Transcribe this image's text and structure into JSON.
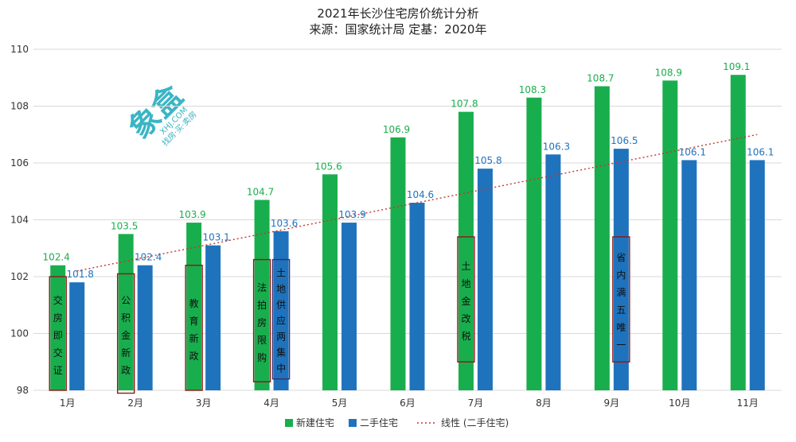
{
  "chart_data": {
    "type": "bar",
    "title": "2021年长沙住宅房价统计分析",
    "subtitle": "来源：国家统计局 定基：2020年",
    "categories": [
      "1月",
      "2月",
      "3月",
      "4月",
      "5月",
      "6月",
      "7月",
      "8月",
      "9月",
      "10月",
      "11月"
    ],
    "series": [
      {
        "name": "新建住宅",
        "color": "#19ae4d",
        "values": [
          102.4,
          103.5,
          103.9,
          104.7,
          105.6,
          106.9,
          107.8,
          108.3,
          108.7,
          108.9,
          109.1
        ]
      },
      {
        "name": "二手住宅",
        "color": "#1f73bd",
        "values": [
          101.8,
          102.4,
          103.1,
          103.6,
          103.9,
          104.6,
          105.8,
          106.3,
          106.5,
          106.1,
          106.1
        ]
      }
    ],
    "trendline": {
      "name": "线性 (二手住宅)",
      "color": "#c0392b",
      "of_series": "二手住宅",
      "style": "dotted",
      "from_category": "1月",
      "to_category": "11月",
      "start_value": 102.2,
      "end_value": 107.0
    },
    "ylim": [
      98,
      110
    ],
    "yticks": [
      98,
      100,
      102,
      104,
      106,
      108,
      110
    ],
    "grid": true,
    "legend": "bottom",
    "data_labels": true
  },
  "annotations": [
    {
      "category": "1月",
      "text": "交房即交证",
      "color": "#19ae4d",
      "border": "#8b1a1a",
      "top_value": 102.0,
      "bottom_value": 98.0
    },
    {
      "category": "2月",
      "text": "公积金新政",
      "color": "#19ae4d",
      "border": "#8b1a1a",
      "top_value": 102.1,
      "bottom_value": 97.9
    },
    {
      "category": "3月",
      "text": "教育新政",
      "color": "#19ae4d",
      "border": "#8b1a1a",
      "top_value": 102.4,
      "bottom_value": 98.0
    },
    {
      "category": "4月",
      "text": "法拍房限购",
      "color": "#19ae4d",
      "border": "#8b1a1a",
      "top_value": 102.6,
      "bottom_value": 98.3
    },
    {
      "category": "4月",
      "text": "土地供应两集中",
      "color": "#1f73bd",
      "border": "#3a2d6e",
      "top_value": 102.6,
      "bottom_value": 98.4,
      "second": true
    },
    {
      "category": "7月",
      "text": "土地金改税",
      "color": "#19ae4d",
      "border": "#8b1a1a",
      "top_value": 103.4,
      "bottom_value": 99.0
    },
    {
      "category": "9月",
      "text": "省内满五唯一",
      "color": "#1f73bd",
      "border": "#8b1a1a",
      "top_value": 103.4,
      "bottom_value": 99.0
    }
  ],
  "watermark": {
    "main": "象盒",
    "sub": "XHJ.COM",
    "sub2": "找房·买·卖房"
  }
}
